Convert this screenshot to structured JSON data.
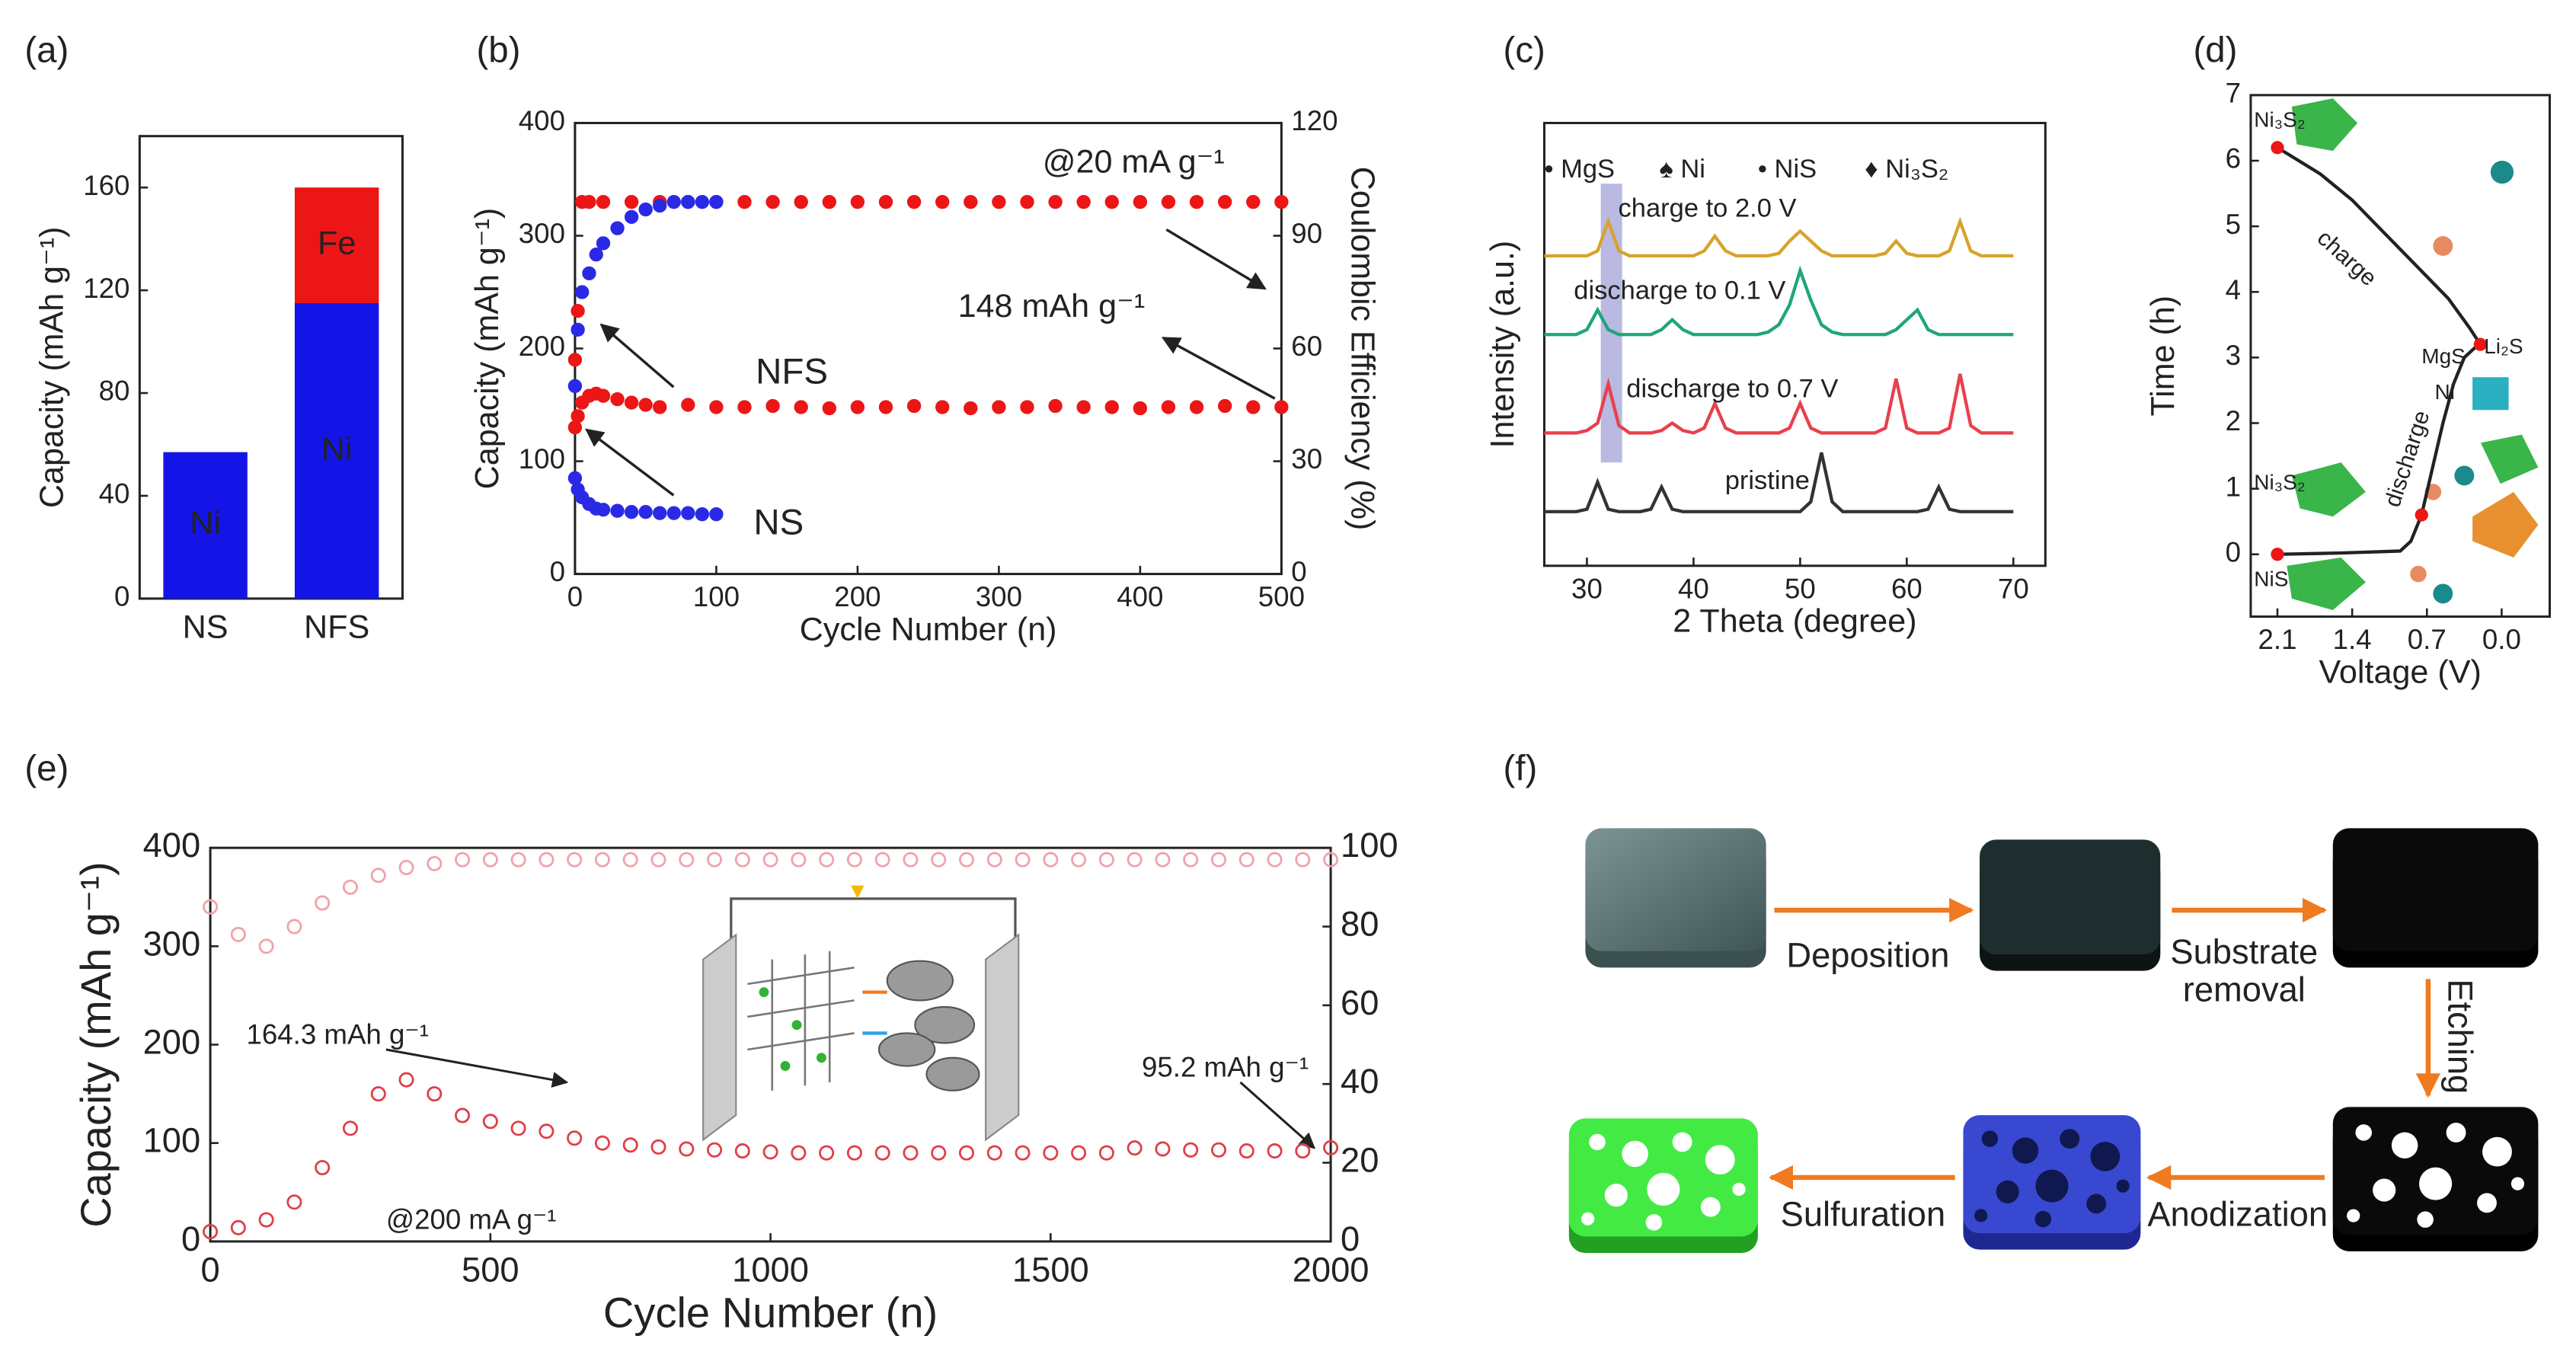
{
  "chart_data": [
    {
      "type": "bar",
      "panel_label": "(a)",
      "ylabel": "Capacity (mAh g⁻¹)",
      "categories": [
        "NS",
        "NFS"
      ],
      "series": [
        {
          "name": "Ni",
          "color": "#1414e6",
          "values": [
            57,
            115
          ]
        },
        {
          "name": "Fe",
          "color": "#ec1616",
          "values": [
            null,
            45
          ]
        }
      ],
      "ylim": [
        0,
        180
      ],
      "yticks": [
        0,
        40,
        80,
        120,
        160
      ]
    },
    {
      "type": "scatter",
      "panel_label": "(b)",
      "xlabel": "Cycle Number (n)",
      "ylabel": "Capacity (mAh g⁻¹)",
      "y2label": "Coulombic Efficiency (%)",
      "marker": "filled",
      "annotations": [
        "@20 mA g⁻¹",
        "148 mAh g⁻¹"
      ],
      "series": [
        {
          "name": "NFS",
          "color": "#ec1616",
          "axis": "y",
          "x": [
            0,
            2,
            5,
            10,
            15,
            20,
            30,
            40,
            50,
            60,
            80,
            100,
            120,
            140,
            160,
            180,
            200,
            220,
            240,
            260,
            280,
            300,
            320,
            340,
            360,
            380,
            400,
            420,
            440,
            460,
            480,
            500
          ],
          "values": [
            130,
            140,
            152,
            158,
            160,
            158,
            155,
            152,
            150,
            148,
            150,
            148,
            148,
            149,
            148,
            147,
            148,
            148,
            149,
            148,
            147,
            148,
            148,
            149,
            148,
            148,
            147,
            148,
            148,
            149,
            148,
            148
          ]
        },
        {
          "color": "#ec1616",
          "axis": "y2",
          "x": [
            0,
            2,
            5,
            10,
            20,
            40,
            60,
            80,
            100,
            120,
            140,
            160,
            180,
            200,
            220,
            240,
            260,
            280,
            300,
            320,
            340,
            360,
            380,
            400,
            420,
            440,
            460,
            480,
            500
          ],
          "values": [
            57,
            70,
            99,
            99,
            99,
            99,
            99,
            99,
            99,
            99,
            99,
            99,
            99,
            99,
            99,
            99,
            99,
            99,
            99,
            99,
            99,
            99,
            99,
            99,
            99,
            99,
            99,
            99,
            99
          ]
        },
        {
          "name": "NS",
          "color": "#2a2ae6",
          "axis": "y",
          "x": [
            0,
            2,
            5,
            10,
            15,
            20,
            30,
            40,
            50,
            60,
            70,
            80,
            90,
            100
          ],
          "values": [
            85,
            75,
            68,
            62,
            58,
            57,
            56,
            55,
            55,
            54,
            54,
            54,
            53,
            53
          ]
        },
        {
          "color": "#2a2ae6",
          "axis": "y2",
          "x": [
            0,
            2,
            5,
            10,
            15,
            20,
            30,
            40,
            50,
            60,
            70,
            80,
            90,
            100
          ],
          "values": [
            50,
            65,
            75,
            80,
            85,
            88,
            92,
            95,
            97,
            98,
            99,
            99,
            99,
            99
          ]
        }
      ],
      "xlim": [
        0,
        500
      ],
      "xticks": [
        0,
        100,
        200,
        300,
        400,
        500
      ],
      "ylim": [
        0,
        400
      ],
      "yticks": [
        0,
        100,
        200,
        300,
        400
      ],
      "y2lim": [
        0,
        120
      ],
      "y2ticks": [
        0,
        30,
        60,
        90,
        120
      ]
    },
    {
      "type": "line",
      "panel_label": "(c)",
      "xlabel": "2 Theta (degree)",
      "ylabel": "Intensity (a.u.)",
      "phases": [
        "• MgS",
        "♠ Ni",
        "• NiS",
        "♦ Ni₃S₂"
      ],
      "highlight_x": [
        31.3,
        33.3
      ],
      "x": [
        26,
        27,
        28,
        29,
        30,
        31,
        32,
        33,
        34,
        35,
        36,
        37,
        38,
        39,
        40,
        41,
        42,
        43,
        44,
        45,
        46,
        47,
        48,
        49,
        50,
        51,
        52,
        53,
        54,
        55,
        56,
        57,
        58,
        59,
        60,
        61,
        62,
        63,
        64,
        65,
        66,
        67,
        68,
        69,
        70
      ],
      "series": [
        {
          "name": "charge to 2.0 V",
          "color": "#d6a32e",
          "values": [
            6.3,
            6.3,
            6.3,
            6.3,
            6.3,
            6.4,
            7.0,
            6.4,
            6.3,
            6.3,
            6.3,
            6.3,
            6.3,
            6.3,
            6.3,
            6.4,
            6.7,
            6.4,
            6.3,
            6.3,
            6.3,
            6.3,
            6.35,
            6.6,
            6.8,
            6.6,
            6.4,
            6.3,
            6.3,
            6.3,
            6.3,
            6.3,
            6.35,
            6.6,
            6.35,
            6.3,
            6.3,
            6.3,
            6.4,
            7.0,
            6.4,
            6.3,
            6.3,
            6.3,
            6.3
          ]
        },
        {
          "name": "discharge to 0.1 V",
          "color": "#1fa67a",
          "values": [
            4.7,
            4.7,
            4.7,
            4.7,
            4.8,
            5.2,
            4.8,
            4.7,
            4.7,
            4.7,
            4.7,
            4.8,
            5.0,
            4.8,
            4.7,
            4.7,
            4.7,
            4.7,
            4.7,
            4.7,
            4.7,
            4.75,
            4.9,
            5.3,
            6.0,
            5.4,
            4.9,
            4.75,
            4.7,
            4.7,
            4.7,
            4.7,
            4.7,
            4.8,
            5.0,
            5.2,
            4.8,
            4.7,
            4.7,
            4.7,
            4.7,
            4.7,
            4.7,
            4.7,
            4.7
          ]
        },
        {
          "name": "discharge to 0.7 V",
          "color": "#e8404e",
          "values": [
            2.7,
            2.7,
            2.7,
            2.7,
            2.75,
            2.9,
            3.7,
            2.85,
            2.7,
            2.7,
            2.7,
            2.75,
            2.9,
            2.75,
            2.7,
            2.8,
            3.3,
            2.8,
            2.7,
            2.7,
            2.7,
            2.7,
            2.7,
            2.8,
            3.3,
            2.8,
            2.7,
            2.7,
            2.7,
            2.7,
            2.7,
            2.7,
            2.8,
            3.8,
            2.8,
            2.7,
            2.7,
            2.7,
            2.8,
            3.9,
            2.85,
            2.7,
            2.7,
            2.7,
            2.7
          ]
        },
        {
          "name": "pristine",
          "color": "#333333",
          "values": [
            1.1,
            1.1,
            1.1,
            1.1,
            1.15,
            1.7,
            1.15,
            1.1,
            1.1,
            1.1,
            1.15,
            1.6,
            1.15,
            1.1,
            1.1,
            1.1,
            1.1,
            1.1,
            1.1,
            1.1,
            1.1,
            1.1,
            1.1,
            1.1,
            1.1,
            1.3,
            2.3,
            1.3,
            1.1,
            1.1,
            1.1,
            1.1,
            1.1,
            1.1,
            1.1,
            1.1,
            1.15,
            1.6,
            1.15,
            1.1,
            1.1,
            1.1,
            1.1,
            1.1,
            1.1
          ]
        }
      ],
      "xlim": [
        26,
        73
      ],
      "xticks": [
        30,
        40,
        50,
        60,
        70
      ],
      "ylim": [
        0,
        9
      ]
    },
    {
      "type": "line",
      "panel_label": "(d)",
      "xlabel": "Voltage (V)",
      "ylabel": "Time (h)",
      "annotations": [
        "discharge",
        "charge"
      ],
      "phases": [
        "Ni₃S₂",
        "Li₂S",
        "MgS",
        "Ni",
        "Ni₃S₂",
        "NiS"
      ],
      "series": [
        {
          "color": "#222222",
          "x": [
            2.1,
            1.5,
            0.95,
            0.85,
            0.75,
            0.65,
            0.55,
            0.45,
            0.35,
            0.25,
            0.2,
            0.3,
            0.5,
            0.8,
            1.1,
            1.4,
            1.7,
            1.95,
            2.1
          ],
          "values": [
            0,
            0.02,
            0.05,
            0.2,
            0.6,
            1.3,
            2.0,
            2.6,
            3.0,
            3.15,
            3.2,
            3.45,
            3.9,
            4.4,
            4.9,
            5.4,
            5.8,
            6.05,
            6.2
          ]
        }
      ],
      "points": {
        "color": "#ec1616",
        "x": [
          2.1,
          0.75,
          0.2,
          2.1
        ],
        "values": [
          0,
          0.6,
          3.2,
          6.2
        ]
      },
      "xlim": [
        2.35,
        -0.45
      ],
      "xticks": [
        2.1,
        1.4,
        0.7,
        {
          "value": 0,
          "label": "0.0"
        }
      ],
      "ylim": [
        -0.95,
        7
      ],
      "yticks": [
        0,
        1,
        2,
        3,
        4,
        5,
        6,
        7
      ]
    },
    {
      "type": "scatter",
      "panel_label": "(e)",
      "xlabel": "Cycle Number (n)",
      "ylabel": "Capacity (mAh g⁻¹)",
      "marker": "open",
      "annotations": [
        "164.3 mAh g⁻¹",
        "95.2 mAh g⁻¹",
        "@200 mA g⁻¹"
      ],
      "series": [
        {
          "color": "#e0404a",
          "axis": "y",
          "x": [
            0,
            50,
            100,
            150,
            200,
            250,
            300,
            350,
            400,
            450,
            500,
            550,
            600,
            650,
            700,
            750,
            800,
            850,
            900,
            950,
            1000,
            1050,
            1100,
            1150,
            1200,
            1250,
            1300,
            1350,
            1400,
            1450,
            1500,
            1550,
            1600,
            1650,
            1700,
            1750,
            1800,
            1850,
            1900,
            1950,
            2000
          ],
          "values": [
            10,
            14,
            22,
            40,
            75,
            115,
            150,
            164.3,
            150,
            128,
            122,
            115,
            112,
            105,
            100,
            98,
            96,
            94,
            93,
            92,
            91,
            90,
            90,
            90,
            90,
            90,
            90,
            90,
            90,
            90,
            90,
            90,
            90,
            95,
            94,
            93,
            93,
            92,
            92,
            92,
            95.2
          ]
        },
        {
          "color": "#f2a2aa",
          "axis": "y2",
          "x": [
            0,
            50,
            100,
            150,
            200,
            250,
            300,
            350,
            400,
            450,
            500,
            550,
            600,
            650,
            700,
            750,
            800,
            850,
            900,
            950,
            1000,
            1050,
            1100,
            1150,
            1200,
            1250,
            1300,
            1350,
            1400,
            1450,
            1500,
            1550,
            1600,
            1650,
            1700,
            1750,
            1800,
            1850,
            1900,
            1950,
            2000
          ],
          "values": [
            85,
            78,
            75,
            80,
            86,
            90,
            93,
            95,
            96,
            97,
            97,
            97,
            97,
            97,
            97,
            97,
            97,
            97,
            97,
            97,
            97,
            97,
            97,
            97,
            97,
            97,
            97,
            97,
            97,
            97,
            97,
            97,
            97,
            97,
            97,
            97,
            97,
            97,
            97,
            97,
            97
          ]
        }
      ],
      "xlim": [
        0,
        2000
      ],
      "xticks": [
        0,
        500,
        1000,
        1500,
        2000
      ],
      "ylim": [
        0,
        400
      ],
      "yticks": [
        0,
        100,
        200,
        300,
        400
      ],
      "y2lim": [
        0,
        100
      ],
      "y2ticks": [
        0,
        20,
        40,
        60,
        80,
        100
      ]
    }
  ],
  "diagram": {
    "panel_label": "(f)",
    "steps": [
      "Deposition",
      [
        "Substrate",
        "removal"
      ],
      "Etching",
      "Anodization",
      "Sulfuration"
    ]
  }
}
